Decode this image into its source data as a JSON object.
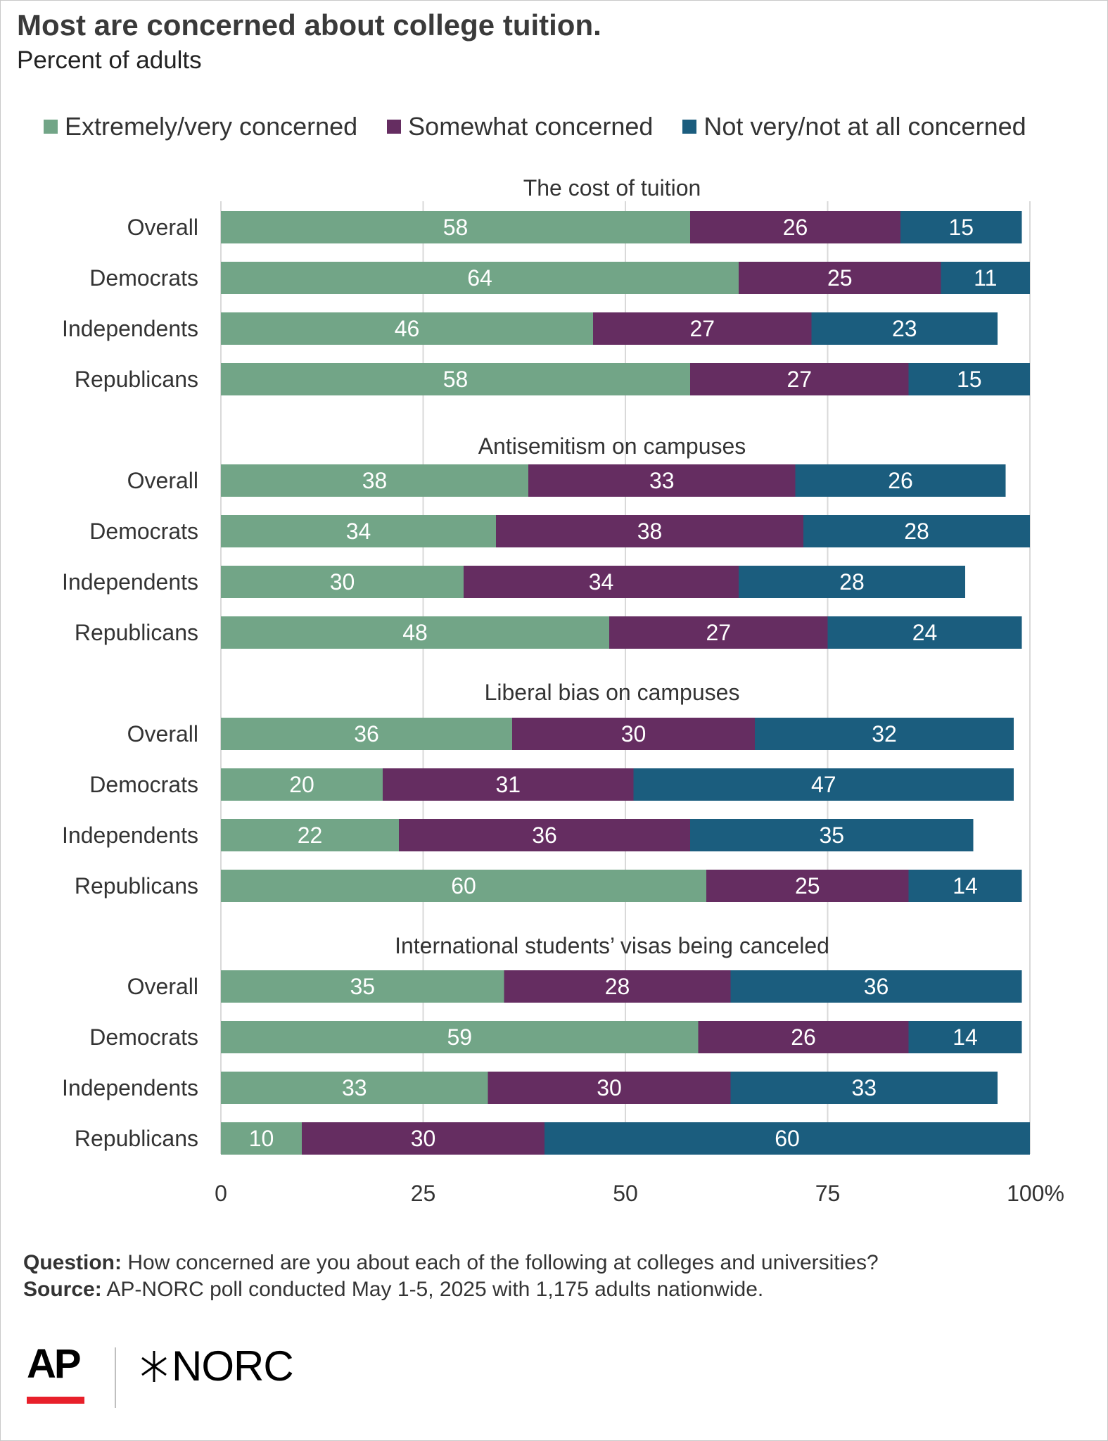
{
  "title": "Most are concerned about college tuition.",
  "subtitle": "Percent of adults",
  "legend": [
    {
      "label": "Extremely/very concerned",
      "color": "#72a587"
    },
    {
      "label": "Somewhat concerned",
      "color": "#652d61"
    },
    {
      "label": "Not very/not at all concerned",
      "color": "#1b5d7e"
    }
  ],
  "notes": {
    "question_label": "Question:",
    "question_text": "How concerned are you about each of the following at colleges and universities?",
    "source_label": "Source:",
    "source_text": "AP-NORC poll conducted May 1-5, 2025 with 1,175 adults nationwide."
  },
  "logos": {
    "ap": "AP",
    "norc": "NORC"
  },
  "chart_data": {
    "type": "bar",
    "orientation": "horizontal",
    "stacked": true,
    "xlim": [
      0,
      100
    ],
    "x_ticks": [
      "0",
      "25",
      "50",
      "75",
      "100%"
    ],
    "grid": true,
    "legend_position": "top",
    "series_names": [
      "Extremely/very concerned",
      "Somewhat concerned",
      "Not very/not at all concerned"
    ],
    "colors": [
      "#72a587",
      "#652d61",
      "#1b5d7e"
    ],
    "panels": [
      {
        "title": "The cost of tuition",
        "rows": [
          {
            "label": "Overall",
            "values": [
              58,
              26,
              15
            ]
          },
          {
            "label": "Democrats",
            "values": [
              64,
              25,
              11
            ]
          },
          {
            "label": "Independents",
            "values": [
              46,
              27,
              23
            ]
          },
          {
            "label": "Republicans",
            "values": [
              58,
              27,
              15
            ]
          }
        ]
      },
      {
        "title": "Antisemitism on campuses",
        "rows": [
          {
            "label": "Overall",
            "values": [
              38,
              33,
              26
            ]
          },
          {
            "label": "Democrats",
            "values": [
              34,
              38,
              28
            ]
          },
          {
            "label": "Independents",
            "values": [
              30,
              34,
              28
            ]
          },
          {
            "label": "Republicans",
            "values": [
              48,
              27,
              24
            ]
          }
        ]
      },
      {
        "title": "Liberal bias on campuses",
        "rows": [
          {
            "label": "Overall",
            "values": [
              36,
              30,
              32
            ]
          },
          {
            "label": "Democrats",
            "values": [
              20,
              31,
              47
            ]
          },
          {
            "label": "Independents",
            "values": [
              22,
              36,
              35
            ]
          },
          {
            "label": "Republicans",
            "values": [
              60,
              25,
              14
            ]
          }
        ]
      },
      {
        "title": "International students’ visas being canceled",
        "rows": [
          {
            "label": "Overall",
            "values": [
              35,
              28,
              36
            ]
          },
          {
            "label": "Democrats",
            "values": [
              59,
              26,
              14
            ]
          },
          {
            "label": "Independents",
            "values": [
              33,
              30,
              33
            ]
          },
          {
            "label": "Republicans",
            "values": [
              10,
              30,
              60
            ]
          }
        ]
      }
    ]
  }
}
